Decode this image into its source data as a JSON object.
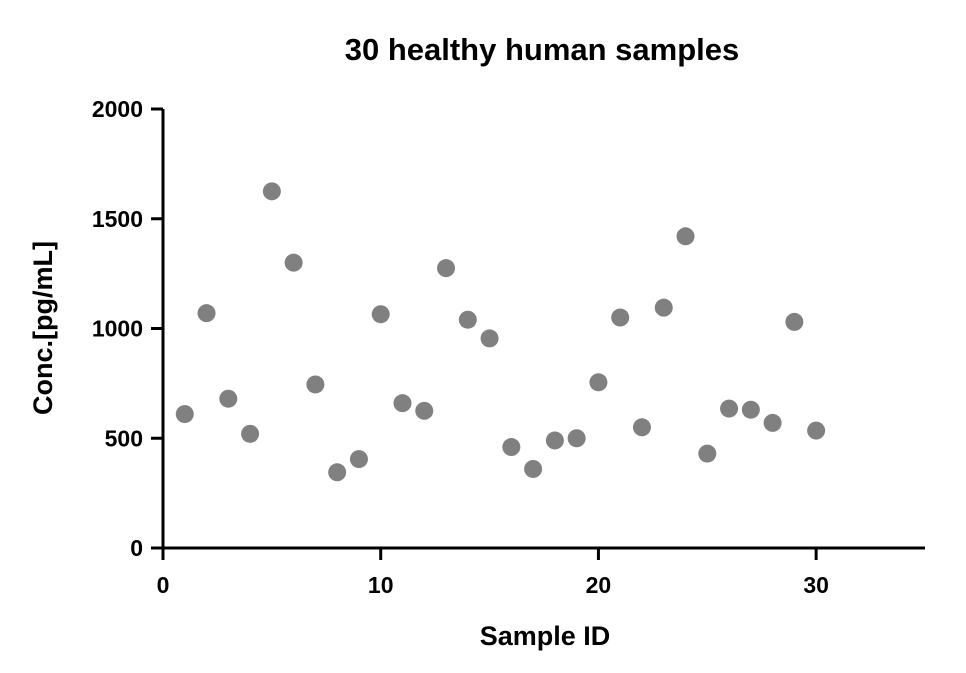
{
  "chart_data": {
    "type": "scatter",
    "title": "30 healthy human samples",
    "xlabel": "Sample ID",
    "ylabel": "Conc.[pg/mL]",
    "xlim": [
      0,
      35
    ],
    "ylim": [
      0,
      2000
    ],
    "xticks": [
      0,
      10,
      20,
      30
    ],
    "yticks": [
      0,
      500,
      1000,
      1500,
      2000
    ],
    "grid": false,
    "marker_color": "#808080",
    "x": [
      1,
      2,
      3,
      4,
      5,
      6,
      7,
      8,
      9,
      10,
      11,
      12,
      13,
      14,
      15,
      16,
      17,
      18,
      19,
      20,
      21,
      22,
      23,
      24,
      25,
      26,
      27,
      28,
      29,
      30
    ],
    "y": [
      610,
      1070,
      680,
      520,
      1625,
      1300,
      745,
      345,
      405,
      1065,
      660,
      625,
      1275,
      1040,
      955,
      460,
      360,
      490,
      500,
      755,
      1050,
      550,
      1095,
      1420,
      430,
      635,
      630,
      570,
      1030,
      535
    ]
  }
}
